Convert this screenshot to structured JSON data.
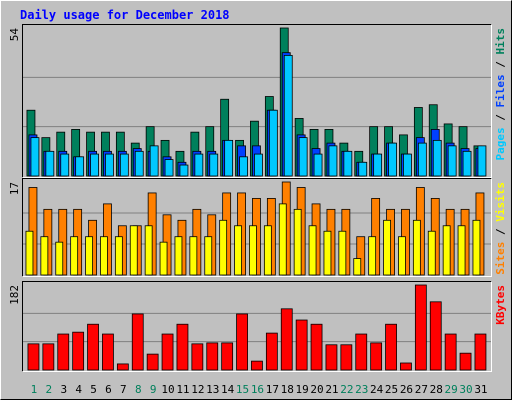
{
  "chart_data": {
    "type": "bar",
    "title": "Daily usage for December 2018",
    "categories": [
      "1",
      "2",
      "3",
      "4",
      "5",
      "6",
      "7",
      "8",
      "9",
      "10",
      "11",
      "12",
      "13",
      "14",
      "15",
      "16",
      "17",
      "18",
      "19",
      "20",
      "21",
      "22",
      "23",
      "24",
      "25",
      "26",
      "27",
      "28",
      "29",
      "30",
      "31"
    ],
    "category_colors": [
      "#00805c",
      "#00805c",
      "#000000",
      "#000000",
      "#000000",
      "#000000",
      "#000000",
      "#00805c",
      "#00805c",
      "#000000",
      "#000000",
      "#000000",
      "#000000",
      "#000000",
      "#00805c",
      "#00805c",
      "#000000",
      "#000000",
      "#000000",
      "#000000",
      "#000000",
      "#00805c",
      "#00805c",
      "#000000",
      "#000000",
      "#000000",
      "#000000",
      "#000000",
      "#00805c",
      "#00805c",
      "#000000"
    ],
    "legend_separator": " / ",
    "panels": [
      {
        "ylim": [
          0,
          54
        ],
        "yticks": [
          54
        ],
        "series": [
          {
            "name": "Hits",
            "color": "#00805c",
            "values": [
              24,
              14,
              16,
              17,
              16,
              16,
              16,
              12,
              18,
              13,
              9,
              16,
              18,
              28,
              13,
              20,
              29,
              54,
              21,
              17,
              17,
              12,
              9,
              18,
              18,
              15,
              25,
              26,
              19,
              18,
              11
            ]
          },
          {
            "name": "Files",
            "color": "#0040ff",
            "values": [
              15,
              9,
              9,
              7,
              9,
              9,
              9,
              10,
              9,
              7,
              5,
              9,
              9,
              13,
              11,
              11,
              24,
              45,
              15,
              10,
              12,
              9,
              5,
              8,
              12,
              8,
              14,
              17,
              12,
              10,
              10
            ]
          },
          {
            "name": "Pages",
            "color": "#00c8ff",
            "values": [
              14,
              9,
              8,
              7,
              8,
              8,
              8,
              9,
              11,
              6,
              4,
              8,
              8,
              13,
              7,
              8,
              24,
              44,
              14,
              8,
              11,
              9,
              5,
              8,
              12,
              8,
              12,
              13,
              11,
              9,
              11
            ]
          }
        ]
      },
      {
        "ylim": [
          0,
          17
        ],
        "yticks": [
          17
        ],
        "series": [
          {
            "name": "Visits",
            "color": "#ffff00",
            "values": [
              8,
              7,
              6,
              7,
              7,
              7,
              7,
              9,
              9,
              6,
              7,
              7,
              7,
              10,
              9,
              9,
              9,
              13,
              12,
              9,
              8,
              8,
              3,
              7,
              10,
              7,
              10,
              8,
              9,
              9,
              10
            ]
          },
          {
            "name": "Sites",
            "color": "#ff8000",
            "values": [
              16,
              12,
              12,
              12,
              10,
              13,
              9,
              9,
              15,
              11,
              10,
              12,
              11,
              15,
              15,
              14,
              14,
              17,
              16,
              13,
              12,
              12,
              7,
              14,
              12,
              12,
              16,
              14,
              12,
              12,
              15
            ]
          }
        ]
      },
      {
        "ylim": [
          0,
          182
        ],
        "yticks": [
          182
        ],
        "series": [
          {
            "name": "KBytes",
            "color": "#ff0000",
            "values": [
              56,
              56,
              77,
              81,
              98,
              77,
              13,
              120,
              34,
              77,
              98,
              56,
              58,
              58,
              120,
              19,
              79,
              131,
              107,
              98,
              54,
              54,
              77,
              58,
              98,
              15,
              182,
              146,
              77,
              36,
              77
            ]
          }
        ]
      }
    ]
  }
}
